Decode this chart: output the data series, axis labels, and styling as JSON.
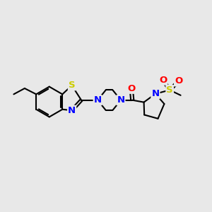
{
  "background_color": "#e8e8e8",
  "bond_color": "#000000",
  "bond_width": 1.5,
  "atom_colors": {
    "S": "#cccc00",
    "N": "#0000ff",
    "O": "#ff0000",
    "C": "#000000"
  },
  "font_size_atom": 9.5,
  "figsize": [
    3.0,
    3.0
  ],
  "dpi": 100
}
